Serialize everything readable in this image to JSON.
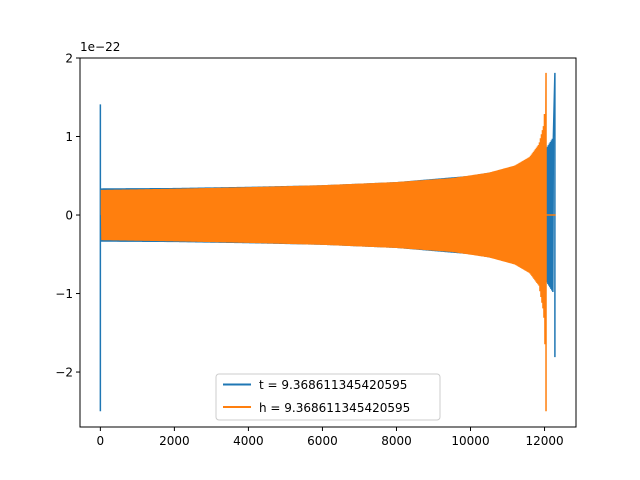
{
  "chart_data": {
    "type": "line",
    "title": "",
    "xlabel": "",
    "ylabel": "",
    "offset_text": "1e−22",
    "xlim": [
      -550,
      12850
    ],
    "ylim": [
      -2.7,
      2.0
    ],
    "x_ticks": [
      0,
      2000,
      4000,
      6000,
      8000,
      10000,
      12000
    ],
    "x_tick_labels": [
      "0",
      "2000",
      "4000",
      "6000",
      "8000",
      "10000",
      "12000"
    ],
    "y_ticks": [
      -2,
      -1,
      0,
      1,
      2
    ],
    "y_tick_labels": [
      "−2",
      "−1",
      "0",
      "1",
      "2"
    ],
    "grid": false,
    "legend_position": "bottom-center",
    "series": [
      {
        "name": "t = 9.368611345420595",
        "color": "#1f77b4",
        "spike_start": {
          "x": 0,
          "max": 1.41,
          "min": -2.5
        },
        "envelope": [
          {
            "x": 0,
            "upper": 0.34,
            "lower": -0.34
          },
          {
            "x": 2000,
            "upper": 0.345,
            "lower": -0.345
          },
          {
            "x": 4000,
            "upper": 0.36,
            "lower": -0.36
          },
          {
            "x": 6000,
            "upper": 0.38,
            "lower": -0.38
          },
          {
            "x": 8000,
            "upper": 0.42,
            "lower": -0.42
          },
          {
            "x": 10000,
            "upper": 0.5,
            "lower": -0.5
          },
          {
            "x": 11000,
            "upper": 0.58,
            "lower": -0.58
          },
          {
            "x": 11700,
            "upper": 0.72,
            "lower": -0.72
          },
          {
            "x": 12050,
            "upper": 0.85,
            "lower": -0.85
          },
          {
            "x": 12250,
            "upper": 1.0,
            "lower": -1.0
          }
        ],
        "spike_end": {
          "x": 12280,
          "max": 1.81,
          "min": -1.81
        },
        "tail": {
          "x_start": 12280,
          "x_end": 12300,
          "value": 0
        }
      },
      {
        "name": "h = 9.368611345420595",
        "color": "#ff7f0e",
        "envelope": [
          {
            "x": 30,
            "upper": 0.32,
            "lower": -0.32
          },
          {
            "x": 2000,
            "upper": 0.335,
            "lower": -0.335
          },
          {
            "x": 4000,
            "upper": 0.355,
            "lower": -0.355
          },
          {
            "x": 6000,
            "upper": 0.38,
            "lower": -0.38
          },
          {
            "x": 8000,
            "upper": 0.42,
            "lower": -0.42
          },
          {
            "x": 9500,
            "upper": 0.47,
            "lower": -0.47
          },
          {
            "x": 10500,
            "upper": 0.54,
            "lower": -0.54
          },
          {
            "x": 11200,
            "upper": 0.63,
            "lower": -0.63
          },
          {
            "x": 11600,
            "upper": 0.74,
            "lower": -0.74
          },
          {
            "x": 11850,
            "upper": 0.9,
            "lower": -0.9
          },
          {
            "x": 11980,
            "upper": 1.15,
            "lower": -1.25
          },
          {
            "x": 12020,
            "upper": 1.45,
            "lower": -1.75
          }
        ],
        "spike_end": {
          "x": 12040,
          "max": 1.81,
          "min": -2.5
        },
        "tail": {
          "x_start": 12040,
          "x_end": 12300,
          "value": 0
        }
      }
    ]
  }
}
